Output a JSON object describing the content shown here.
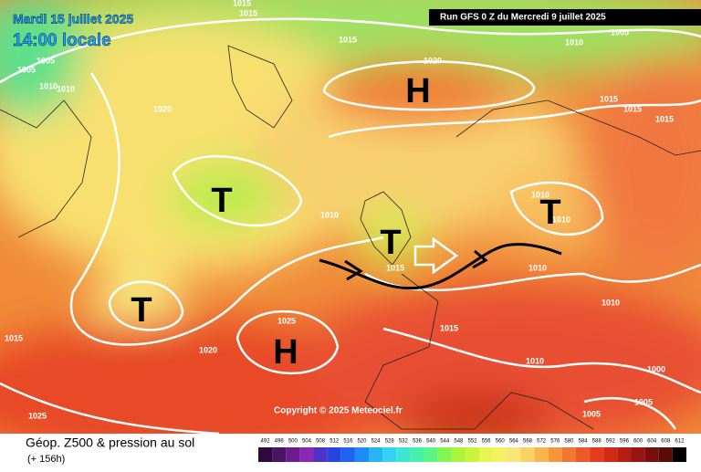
{
  "header": {
    "date": "Mardi 15 juillet 2025",
    "time": "14:00 locale",
    "run": "Run GFS 0 Z du Mercredi 9 juillet 2025"
  },
  "copyright": "Copyright © 2025 Meteociel.fr",
  "footer": {
    "title": "Géop. Z500 & pression au sol",
    "lead": "(+ 156h)"
  },
  "centers": [
    "H",
    "T",
    "T",
    "H",
    "T",
    "T"
  ],
  "isobar_labels": [
    "1015",
    "1015",
    "1005",
    "1010",
    "1015",
    "1020",
    "1005",
    "1005",
    "1010",
    "1010",
    "1020",
    "1015",
    "1015",
    "1015",
    "1010",
    "1010",
    "1010",
    "1015",
    "1010",
    "1010",
    "1015",
    "1015",
    "1020",
    "1025",
    "1010",
    "1000",
    "1005",
    "1005",
    "1025"
  ],
  "scale": {
    "values": [
      492,
      496,
      500,
      504,
      508,
      512,
      516,
      520,
      524,
      528,
      532,
      536,
      540,
      544,
      548,
      552,
      556,
      560,
      564,
      568,
      572,
      576,
      580,
      584,
      588,
      592,
      596,
      600,
      604,
      608,
      612
    ],
    "colors": [
      "#2d0a3c",
      "#4b1464",
      "#6a1e8c",
      "#8a28b4",
      "#5032c8",
      "#2846dc",
      "#1e64f0",
      "#1e8cf5",
      "#28b4f5",
      "#32d2f0",
      "#3ce6d2",
      "#46f0aa",
      "#5af582",
      "#82f550",
      "#aaf53c",
      "#c8f53c",
      "#e6f550",
      "#f5f064",
      "#fae678",
      "#fad264",
      "#fab450",
      "#f5963c",
      "#f07832",
      "#eb5a28",
      "#e63c1e",
      "#d22814",
      "#b41e14",
      "#961414",
      "#780f0f",
      "#5a0a0a",
      "#000000"
    ]
  }
}
